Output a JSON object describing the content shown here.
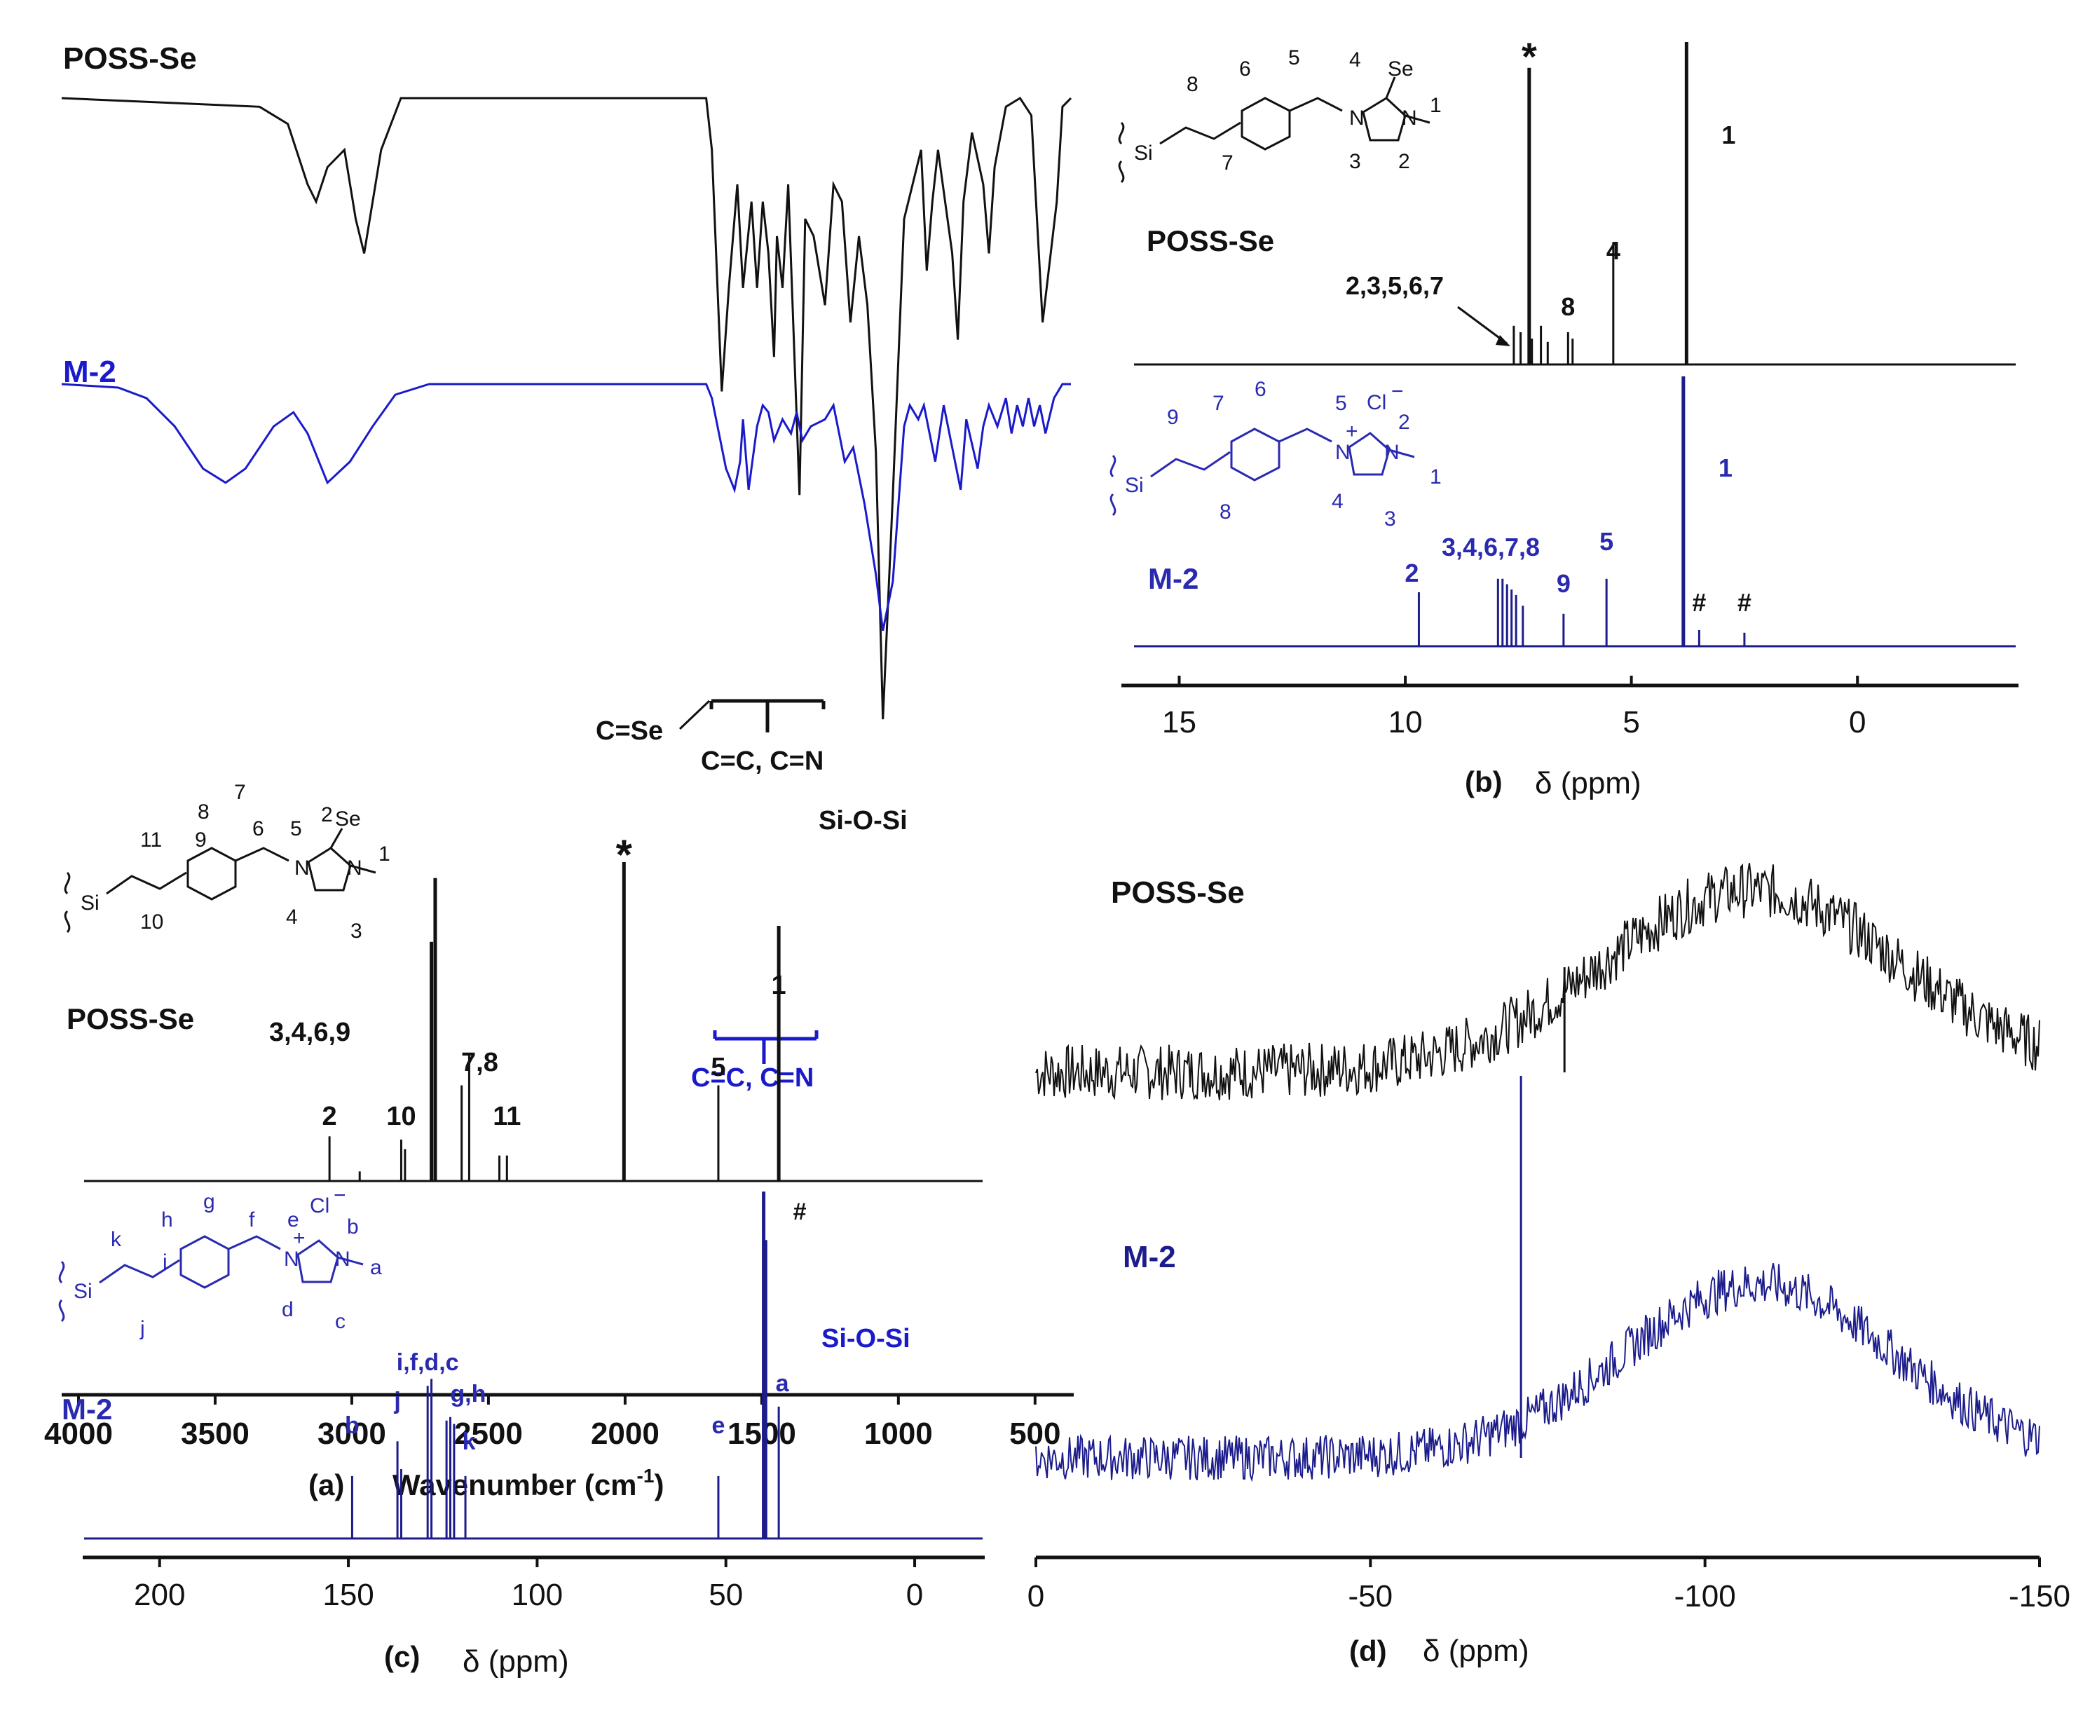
{
  "colors": {
    "black": "#111111",
    "blue": "#1a1acc",
    "navy": "#1c1c8c"
  },
  "chart_data": [
    {
      "panel": "a",
      "type": "line",
      "xlabel": "Wavenumber (cm",
      "xlabel_sup": "-1",
      "xlabel_tail": ")",
      "xlim": [
        4000,
        420
      ],
      "ticks": [
        4000,
        3500,
        3000,
        2500,
        2000,
        1500,
        1000,
        500
      ],
      "series": [
        {
          "name": "POSS-Se",
          "color": "#111111",
          "points": [
            [
              4000,
              0.96
            ],
            [
              3300,
              0.95
            ],
            [
              3200,
              0.93
            ],
            [
              3130,
              0.86
            ],
            [
              3100,
              0.84
            ],
            [
              3060,
              0.88
            ],
            [
              3000,
              0.9
            ],
            [
              2960,
              0.82
            ],
            [
              2930,
              0.78
            ],
            [
              2870,
              0.9
            ],
            [
              2800,
              0.96
            ],
            [
              1720,
              0.96
            ],
            [
              1700,
              0.9
            ],
            [
              1665,
              0.62
            ],
            [
              1640,
              0.74
            ],
            [
              1610,
              0.86
            ],
            [
              1590,
              0.74
            ],
            [
              1560,
              0.84
            ],
            [
              1540,
              0.74
            ],
            [
              1520,
              0.84
            ],
            [
              1500,
              0.78
            ],
            [
              1480,
              0.66
            ],
            [
              1470,
              0.8
            ],
            [
              1450,
              0.74
            ],
            [
              1430,
              0.86
            ],
            [
              1390,
              0.5
            ],
            [
              1370,
              0.82
            ],
            [
              1340,
              0.8
            ],
            [
              1300,
              0.72
            ],
            [
              1270,
              0.86
            ],
            [
              1240,
              0.84
            ],
            [
              1210,
              0.7
            ],
            [
              1180,
              0.8
            ],
            [
              1150,
              0.72
            ],
            [
              1120,
              0.55
            ],
            [
              1095,
              0.24
            ],
            [
              1060,
              0.5
            ],
            [
              1020,
              0.82
            ],
            [
              990,
              0.86
            ],
            [
              960,
              0.9
            ],
            [
              940,
              0.76
            ],
            [
              920,
              0.84
            ],
            [
              900,
              0.9
            ],
            [
              850,
              0.78
            ],
            [
              830,
              0.68
            ],
            [
              810,
              0.84
            ],
            [
              780,
              0.92
            ],
            [
              740,
              0.86
            ],
            [
              720,
              0.78
            ],
            [
              700,
              0.88
            ],
            [
              660,
              0.95
            ],
            [
              610,
              0.96
            ],
            [
              570,
              0.94
            ],
            [
              530,
              0.7
            ],
            [
              480,
              0.84
            ],
            [
              460,
              0.95
            ],
            [
              430,
              0.96
            ]
          ]
        },
        {
          "name": "M-2",
          "color": "#1a1acc",
          "points": [
            [
              4000,
              0.96
            ],
            [
              3800,
              0.95
            ],
            [
              3700,
              0.92
            ],
            [
              3600,
              0.84
            ],
            [
              3500,
              0.72
            ],
            [
              3420,
              0.68
            ],
            [
              3350,
              0.72
            ],
            [
              3250,
              0.84
            ],
            [
              3180,
              0.88
            ],
            [
              3130,
              0.82
            ],
            [
              3060,
              0.68
            ],
            [
              2980,
              0.74
            ],
            [
              2900,
              0.84
            ],
            [
              2820,
              0.93
            ],
            [
              2700,
              0.96
            ],
            [
              1720,
              0.96
            ],
            [
              1700,
              0.92
            ],
            [
              1650,
              0.72
            ],
            [
              1620,
              0.66
            ],
            [
              1600,
              0.74
            ],
            [
              1590,
              0.86
            ],
            [
              1570,
              0.66
            ],
            [
              1540,
              0.84
            ],
            [
              1520,
              0.9
            ],
            [
              1500,
              0.88
            ],
            [
              1480,
              0.8
            ],
            [
              1450,
              0.86
            ],
            [
              1420,
              0.82
            ],
            [
              1400,
              0.88
            ],
            [
              1380,
              0.8
            ],
            [
              1350,
              0.84
            ],
            [
              1300,
              0.86
            ],
            [
              1270,
              0.9
            ],
            [
              1230,
              0.74
            ],
            [
              1200,
              0.78
            ],
            [
              1160,
              0.62
            ],
            [
              1120,
              0.42
            ],
            [
              1095,
              0.26
            ],
            [
              1060,
              0.4
            ],
            [
              1020,
              0.84
            ],
            [
              1000,
              0.9
            ],
            [
              970,
              0.86
            ],
            [
              950,
              0.9
            ],
            [
              910,
              0.74
            ],
            [
              880,
              0.9
            ],
            [
              850,
              0.78
            ],
            [
              820,
              0.66
            ],
            [
              800,
              0.86
            ],
            [
              760,
              0.72
            ],
            [
              740,
              0.84
            ],
            [
              720,
              0.9
            ],
            [
              690,
              0.84
            ],
            [
              660,
              0.92
            ],
            [
              640,
              0.82
            ],
            [
              620,
              0.9
            ],
            [
              600,
              0.84
            ],
            [
              580,
              0.92
            ],
            [
              560,
              0.84
            ],
            [
              540,
              0.9
            ],
            [
              520,
              0.82
            ],
            [
              490,
              0.92
            ],
            [
              460,
              0.96
            ],
            [
              430,
              0.96
            ]
          ]
        }
      ]
    },
    {
      "panel": "b",
      "type": "line",
      "xlabel": "δ (ppm)",
      "xlim": [
        16,
        -3.5
      ],
      "ticks": [
        15,
        10,
        5,
        0
      ],
      "series": [
        {
          "name": "POSS-Se",
          "color": "#111111",
          "peaks": [
            [
              7.26,
              0.92
            ],
            [
              7.6,
              0.12
            ],
            [
              7.45,
              0.1
            ],
            [
              7.2,
              0.08
            ],
            [
              7.0,
              0.12
            ],
            [
              6.85,
              0.07
            ],
            [
              6.4,
              0.1
            ],
            [
              6.3,
              0.08
            ],
            [
              5.4,
              0.38
            ],
            [
              3.78,
              1.0
            ]
          ],
          "labels": [
            "*",
            "1",
            "4",
            "8",
            "2,3,5,6,7"
          ]
        },
        {
          "name": "M-2",
          "color": "#1c1c8c",
          "peaks": [
            [
              9.7,
              0.2
            ],
            [
              7.95,
              0.25
            ],
            [
              7.85,
              0.25
            ],
            [
              7.75,
              0.23
            ],
            [
              7.65,
              0.21
            ],
            [
              7.55,
              0.19
            ],
            [
              7.4,
              0.15
            ],
            [
              6.5,
              0.12
            ],
            [
              5.55,
              0.25
            ],
            [
              3.85,
              1.0
            ],
            [
              3.5,
              0.06
            ],
            [
              2.5,
              0.05
            ]
          ],
          "labels": [
            "2",
            "3,4,6,7,8",
            "9",
            "5",
            "1",
            "#",
            "#"
          ]
        }
      ]
    },
    {
      "panel": "c",
      "type": "line",
      "xlabel": "δ (ppm)",
      "xlim": [
        220,
        -18
      ],
      "ticks": [
        200,
        150,
        100,
        50,
        0
      ],
      "series": [
        {
          "name": "POSS-Se",
          "color": "#111111",
          "peaks": [
            [
              155,
              0.14
            ],
            [
              147,
              0.03
            ],
            [
              136,
              0.13
            ],
            [
              135,
              0.1
            ],
            [
              128,
              0.75
            ],
            [
              127,
              0.95
            ],
            [
              120,
              0.3
            ],
            [
              118,
              0.4
            ],
            [
              110,
              0.08
            ],
            [
              108,
              0.08
            ],
            [
              77,
              1.0
            ],
            [
              52,
              0.3
            ],
            [
              36,
              0.8
            ]
          ],
          "labels": [
            "*",
            "1",
            "5",
            "2",
            "10",
            "3,4,6,9",
            "7,8",
            "11"
          ]
        },
        {
          "name": "M-2",
          "color": "#1c1c8c",
          "peaks": [
            [
              149,
              0.18
            ],
            [
              137,
              0.28
            ],
            [
              136,
              0.2
            ],
            [
              129,
              0.44
            ],
            [
              128,
              0.46
            ],
            [
              124,
              0.34
            ],
            [
              123,
              0.35
            ],
            [
              122,
              0.33
            ],
            [
              119,
              0.18
            ],
            [
              52,
              0.18
            ],
            [
              40,
              1.0
            ],
            [
              39.5,
              0.86
            ],
            [
              36,
              0.38
            ]
          ],
          "labels": [
            "b",
            "j",
            "i,f,d,c",
            "g,h",
            "k",
            "e",
            "a",
            "#"
          ]
        }
      ]
    },
    {
      "panel": "d",
      "type": "line",
      "xlabel": "δ (ppm)",
      "xlim": [
        0,
        -150
      ],
      "ticks": [
        0,
        -50,
        -100,
        -150
      ],
      "series": [
        {
          "name": "POSS-Se",
          "color": "#111111",
          "broad_center": -107,
          "broad_width": 22,
          "broad_height": 0.65,
          "sharp_peak": [
            -79,
            0.4
          ]
        },
        {
          "name": "M-2",
          "color": "#1c1c8c",
          "broad_center": -108,
          "broad_width": 20,
          "broad_height": 0.62,
          "sharp_peak": [
            -72.5,
            1.0
          ]
        }
      ]
    }
  ],
  "panels": {
    "a": {
      "tag": "(a)",
      "series_label_top": "POSS-Se",
      "series_label_bottom": "M-2",
      "ann_cse": "C=Se",
      "ann_ccn_top": "C=C, C=N",
      "ann_siosi_top": "Si-O-Si",
      "ann_ccn_bottom": "C=C, C=N",
      "ann_siosi_bottom": "Si-O-Si"
    },
    "b": {
      "tag": "(b)",
      "series_label_top": "POSS-Se",
      "series_label_bottom": "M-2",
      "struct_top": {
        "Si": "Si",
        "Se": "Se",
        "N1": "N",
        "N2": "N",
        "n8": "8",
        "n7": "7",
        "n6": "6",
        "n5": "5",
        "n4": "4",
        "n3": "3",
        "n2": "2",
        "n1": "1"
      },
      "struct_bottom": {
        "Si": "Si",
        "Cl": "Cl",
        "minus": "−",
        "plus": "+",
        "N1": "N",
        "N2": "N",
        "n9": "9",
        "n8": "8",
        "n7": "7",
        "n6": "6",
        "n5": "5",
        "n4": "4",
        "n3": "3",
        "n2": "2",
        "n1": "1"
      }
    },
    "c": {
      "tag": "(c)",
      "series_label_top": "POSS-Se",
      "series_label_bottom": "M-2",
      "struct_top": {
        "Si": "Si",
        "Se": "Se",
        "N1": "N",
        "N2": "N",
        "n11": "11",
        "n10": "10",
        "n9": "9",
        "n8": "8",
        "n7": "7",
        "n6": "6",
        "n5": "5",
        "n4": "4",
        "n3": "3",
        "n2": "2",
        "n1": "1"
      },
      "struct_bottom": {
        "Si": "Si",
        "Cl": "Cl",
        "minus": "−",
        "plus": "+",
        "N1": "N",
        "N2": "N",
        "k": "k",
        "j": "j",
        "i": "i",
        "h": "h",
        "g": "g",
        "f": "f",
        "e": "e",
        "d": "d",
        "c": "c",
        "b": "b",
        "a": "a"
      }
    },
    "d": {
      "tag": "(d)",
      "series_label_top": "POSS-Se",
      "series_label_bottom": "M-2"
    }
  }
}
